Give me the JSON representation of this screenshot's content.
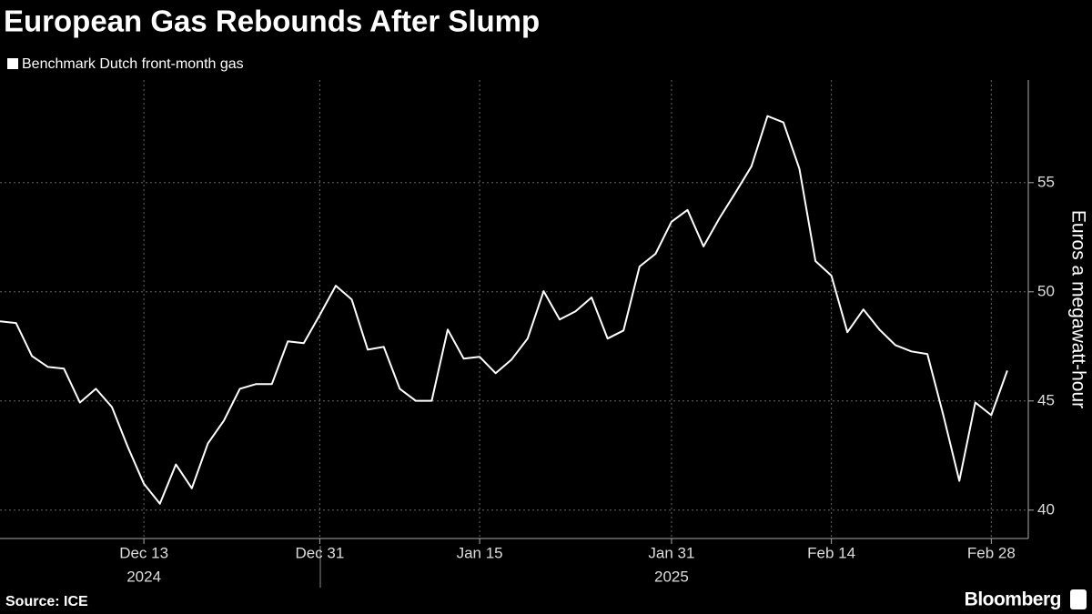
{
  "chart_data": {
    "type": "line",
    "title": "European Gas Rebounds After Slump",
    "y_axis_label": "Euros a megawatt-hour",
    "source": "Source: ICE",
    "logo": "Bloomberg",
    "categories": [
      null,
      null,
      null,
      null,
      null,
      null,
      null,
      null,
      null,
      "Dec 13",
      null,
      null,
      null,
      null,
      null,
      null,
      null,
      null,
      null,
      null,
      "Dec 31",
      null,
      null,
      null,
      null,
      null,
      null,
      null,
      null,
      null,
      "Jan 15",
      null,
      null,
      null,
      null,
      null,
      null,
      null,
      null,
      null,
      null,
      null,
      "Jan 31",
      null,
      null,
      null,
      null,
      null,
      null,
      null,
      null,
      null,
      "Feb 14",
      null,
      null,
      null,
      null,
      null,
      null,
      null,
      null,
      null,
      "Feb 28",
      null
    ],
    "x_group_labels": [
      "2024",
      "2025"
    ],
    "series": [
      {
        "name": "Benchmark Dutch front-month gas",
        "color": "#ffffff",
        "values": [
          48.65,
          48.57,
          47.06,
          46.56,
          46.48,
          44.93,
          45.56,
          44.72,
          42.88,
          41.21,
          40.29,
          42.09,
          41.0,
          43.05,
          44.1,
          45.56,
          45.77,
          45.77,
          47.73,
          47.65,
          48.94,
          50.28,
          49.65,
          47.35,
          47.48,
          45.56,
          45.01,
          45.01,
          48.27,
          46.94,
          47.02,
          46.27,
          46.9,
          47.86,
          50.03,
          48.73,
          49.11,
          49.74,
          47.86,
          48.23,
          51.16,
          51.74,
          53.21,
          53.75,
          52.08,
          53.37,
          54.54,
          55.75,
          58.05,
          57.76,
          55.63,
          51.41,
          50.74,
          48.15,
          49.19,
          48.27,
          47.56,
          47.27,
          47.15,
          44.35,
          41.34,
          44.93,
          44.35,
          46.39
        ]
      }
    ],
    "ylim": [
      38.7,
      59.7
    ],
    "yticks": [
      40,
      45,
      50,
      55
    ],
    "grid": true
  }
}
